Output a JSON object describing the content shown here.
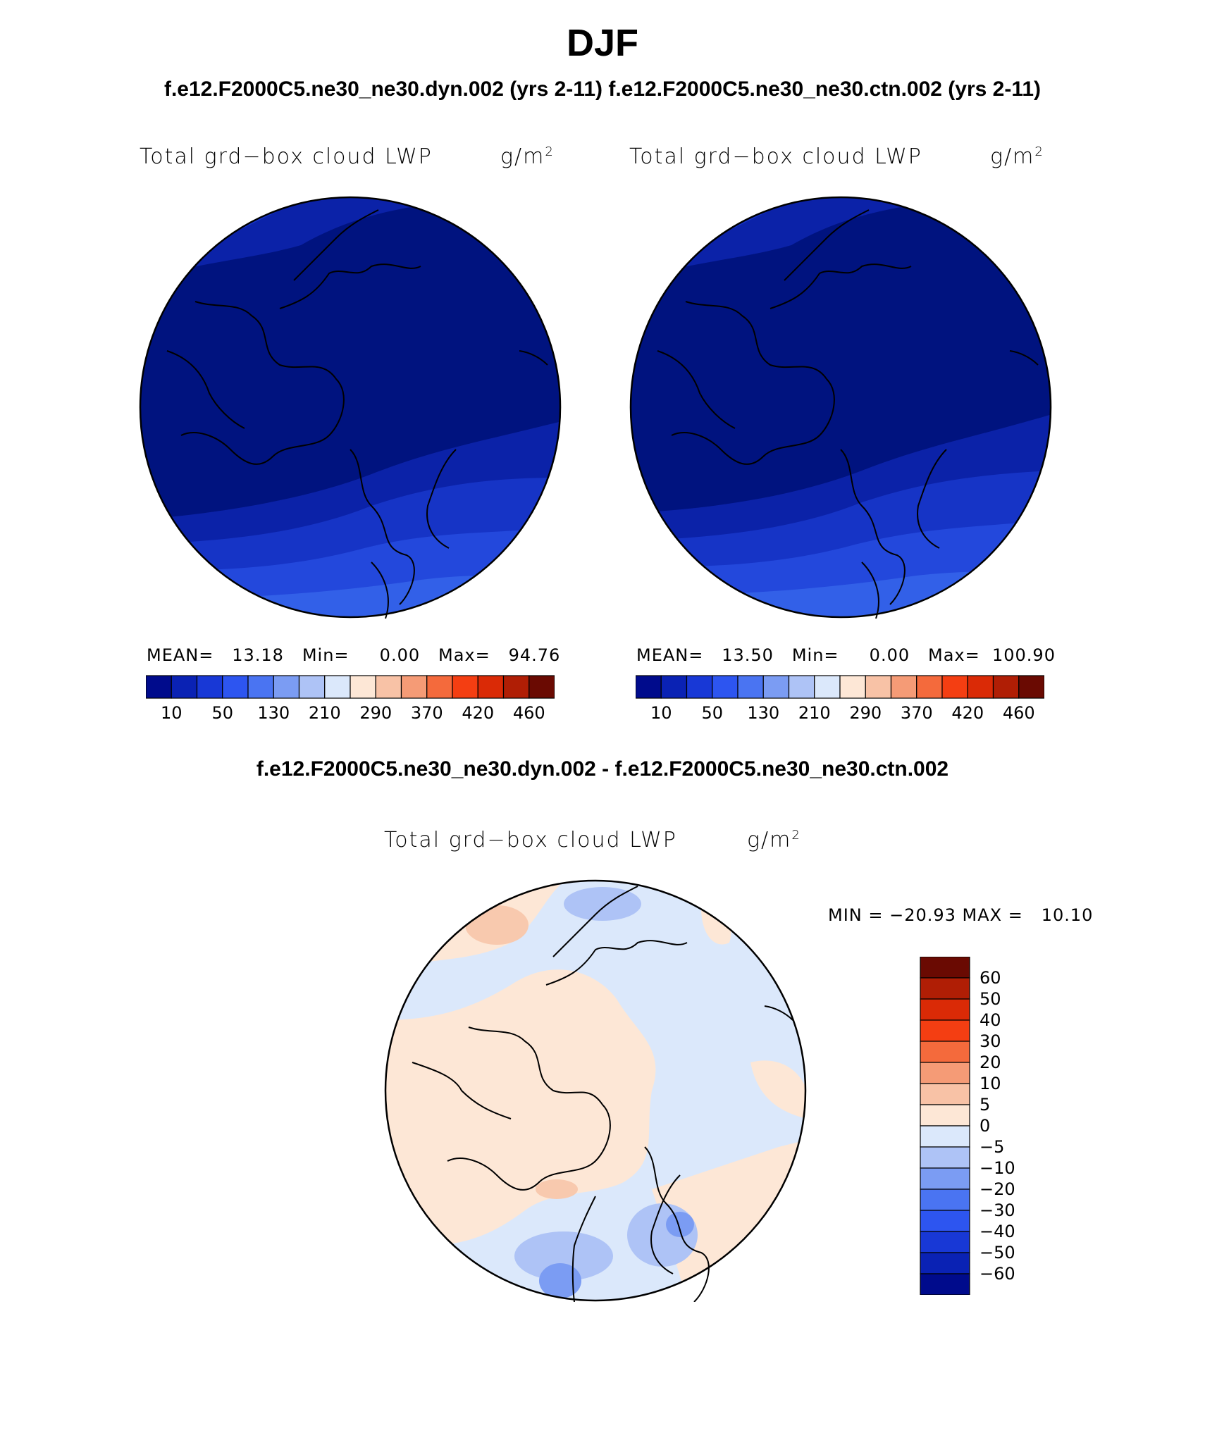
{
  "figure": {
    "title": "DJF",
    "case_titles": "f.e12.F2000C5.ne30_ne30.dyn.002 (yrs 2-11)  f.e12.F2000C5.ne30_ne30.ctn.002 (yrs 2-11)",
    "diff_title": "f.e12.F2000C5.ne30_ne30.dyn.002 - f.e12.F2000C5.ne30_ne30.ctn.002"
  },
  "panels": [
    {
      "variable": "Total grd−box cloud LWP",
      "units": "g/m",
      "units_sup": "2",
      "stats": "MEAN=   13.18   Min=     0.00   Max=   94.76"
    },
    {
      "variable": "Total grd−box cloud LWP",
      "units": "g/m",
      "units_sup": "2",
      "stats": "MEAN=   13.50   Min=     0.00   Max=  100.90"
    }
  ],
  "diff_panel": {
    "variable": "Total grd−box cloud LWP",
    "units": "g/m",
    "units_sup": "2",
    "stats": "MIN = −20.93 MAX =   10.10"
  },
  "colorbar_abs": {
    "colors": [
      "#000b8c",
      "#0a22b4",
      "#1838d6",
      "#2d55f0",
      "#4a74f2",
      "#7b9cf3",
      "#aec3f6",
      "#dbe8fb",
      "#fde7d6",
      "#f8c2a6",
      "#f59b76",
      "#f46a3c",
      "#f43e12",
      "#da2a06",
      "#b01e05",
      "#6a0a02"
    ],
    "labels": [
      "10",
      "50",
      "130",
      "210",
      "290",
      "370",
      "420",
      "460"
    ]
  },
  "colorbar_diff": {
    "colors": [
      "#6a0a02",
      "#b01e05",
      "#da2a06",
      "#f43e12",
      "#f46a3c",
      "#f59b76",
      "#f8c2a6",
      "#fde7d6",
      "#dbe8fb",
      "#aec3f6",
      "#7b9cf3",
      "#4a74f2",
      "#2d55f0",
      "#1838d6",
      "#0a22b4",
      "#000b8c"
    ],
    "labels": [
      "60",
      "50",
      "40",
      "30",
      "20",
      "10",
      "5",
      "0",
      "−5",
      "−10",
      "−20",
      "−30",
      "−40",
      "−50",
      "−60"
    ]
  },
  "map_colors": {
    "abs_base": "#00137f",
    "abs_band1": "#0b22a8",
    "abs_band2": "#1634c6",
    "abs_band3": "#2348dc",
    "abs_band4": "#3260e8",
    "diff_pos": "#fde7d6",
    "diff_pos2": "#f8c9ae",
    "diff_neg": "#dbe8fb",
    "diff_neg2": "#aec3f6",
    "diff_neg3": "#7b9cf3",
    "coast": "#000000"
  }
}
